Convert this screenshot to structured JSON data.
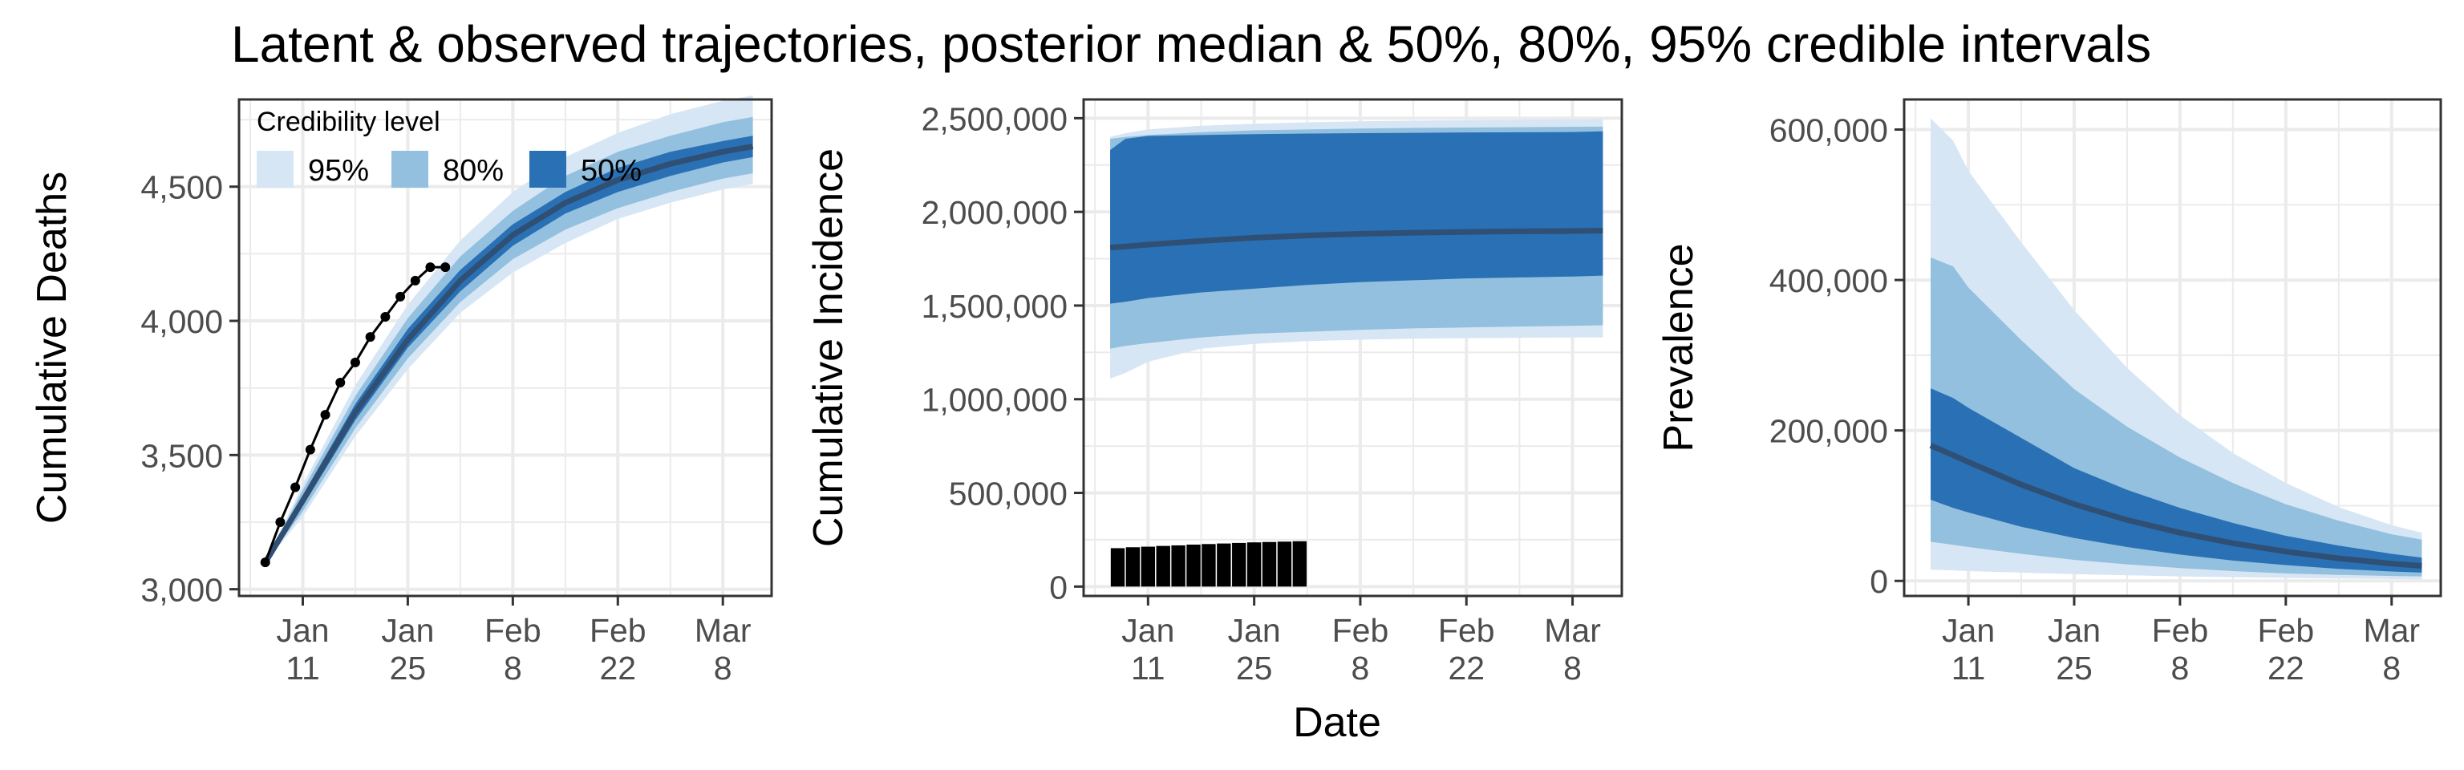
{
  "title": "Latent & observed trajectories, posterior median & 50%, 80%, 95% credible intervals",
  "colors": {
    "band95": "#D6E6F4",
    "band80": "#93C0DE",
    "band50": "#2A70B4",
    "median": "#2F4F74",
    "observed": "#000000",
    "grid": "#EBEBEB",
    "axis": "#333333"
  },
  "legend": {
    "title": "Credibility level",
    "items": [
      "95%",
      "80%",
      "50%"
    ],
    "placement": "top-left inside first panel"
  },
  "shared_x": {
    "label": "Date",
    "ticks": [
      {
        "day": 0,
        "line1": "Jan",
        "line2": "11"
      },
      {
        "day": 14,
        "line1": "Jan",
        "line2": "25"
      },
      {
        "day": 28,
        "line1": "Feb",
        "line2": "8"
      },
      {
        "day": 42,
        "line1": "Feb",
        "line2": "22"
      },
      {
        "day": 56,
        "line1": "Mar",
        "line2": "8"
      }
    ],
    "range_days": [
      -8.5,
      62.5
    ]
  },
  "chart_data": [
    {
      "type": "area",
      "ylabel": "Cumulative Deaths",
      "xlabel": "",
      "ylim": [
        2975,
        4825
      ],
      "yticks": [
        {
          "v": 3000,
          "label": "3,000"
        },
        {
          "v": 3500,
          "label": "3,500"
        },
        {
          "v": 4000,
          "label": "4,000"
        },
        {
          "v": 4500,
          "label": "4,500"
        }
      ],
      "x": [
        -5,
        0,
        7,
        14,
        21,
        28,
        35,
        42,
        49,
        56,
        60
      ],
      "median": [
        3100,
        3330,
        3660,
        3930,
        4150,
        4320,
        4440,
        4525,
        4585,
        4630,
        4650
      ],
      "q50": {
        "lo": [
          3100,
          3310,
          3630,
          3900,
          4110,
          4280,
          4400,
          4480,
          4540,
          4590,
          4610
        ],
        "hi": [
          3100,
          3350,
          3690,
          3970,
          4190,
          4360,
          4480,
          4570,
          4630,
          4670,
          4690
        ]
      },
      "q80": {
        "lo": [
          3100,
          3290,
          3600,
          3860,
          4070,
          4230,
          4340,
          4420,
          4480,
          4530,
          4550
        ],
        "hi": [
          3100,
          3370,
          3720,
          4010,
          4240,
          4410,
          4540,
          4630,
          4690,
          4740,
          4760
        ]
      },
      "q95": {
        "lo": [
          3100,
          3270,
          3570,
          3820,
          4030,
          4180,
          4290,
          4380,
          4440,
          4490,
          4510
        ],
        "hi": [
          3100,
          3390,
          3760,
          4060,
          4300,
          4480,
          4610,
          4700,
          4770,
          4820,
          4840
        ]
      },
      "observed": {
        "type": "line",
        "x": [
          -5,
          -3,
          -1,
          1,
          3,
          5,
          7,
          9,
          11,
          13,
          15,
          17,
          19
        ],
        "y": [
          3100,
          3250,
          3380,
          3520,
          3650,
          3770,
          3845,
          3940,
          4015,
          4090,
          4150,
          4200,
          4200
        ]
      }
    },
    {
      "type": "area",
      "ylabel": "Cumulative Incidence",
      "xlabel": "Date",
      "ylim": [
        -50000,
        2600000
      ],
      "yticks": [
        {
          "v": 0,
          "label": "0"
        },
        {
          "v": 500000,
          "label": "500,000"
        },
        {
          "v": 1000000,
          "label": "1,000,000"
        },
        {
          "v": 1500000,
          "label": "1,500,000"
        },
        {
          "v": 2000000,
          "label": "2,000,000"
        },
        {
          "v": 2500000,
          "label": "2,500,000"
        }
      ],
      "x": [
        -5,
        -3,
        0,
        7,
        14,
        21,
        28,
        35,
        42,
        49,
        56,
        60
      ],
      "median": [
        1810000,
        1815000,
        1825000,
        1845000,
        1862000,
        1874000,
        1883000,
        1889000,
        1893000,
        1896000,
        1898000,
        1900000
      ],
      "q50": {
        "lo": [
          1510000,
          1520000,
          1540000,
          1570000,
          1590000,
          1610000,
          1625000,
          1635000,
          1645000,
          1650000,
          1655000,
          1660000
        ],
        "hi": [
          2330000,
          2390000,
          2405000,
          2410000,
          2415000,
          2418000,
          2420000,
          2422000,
          2424000,
          2425000,
          2426000,
          2430000
        ]
      },
      "q80": {
        "lo": [
          1270000,
          1285000,
          1300000,
          1330000,
          1350000,
          1360000,
          1370000,
          1378000,
          1383000,
          1388000,
          1392000,
          1395000
        ],
        "hi": [
          2390000,
          2400000,
          2410000,
          2425000,
          2435000,
          2440000,
          2445000,
          2448000,
          2450000,
          2452000,
          2454000,
          2455000
        ]
      },
      "q95": {
        "lo": [
          1110000,
          1140000,
          1200000,
          1270000,
          1295000,
          1310000,
          1318000,
          1323000,
          1326000,
          1328000,
          1330000,
          1330000
        ],
        "hi": [
          2400000,
          2420000,
          2440000,
          2460000,
          2470000,
          2478000,
          2483000,
          2487000,
          2490000,
          2492000,
          2494000,
          2495000
        ]
      },
      "observed": {
        "type": "bar",
        "x": [
          -4,
          -2,
          0,
          2,
          4,
          6,
          8,
          10,
          12,
          14,
          16,
          18,
          20
        ],
        "y": [
          205000,
          210000,
          213000,
          217000,
          220000,
          224000,
          227000,
          230000,
          233000,
          236000,
          238000,
          240000,
          242000
        ]
      }
    },
    {
      "type": "area",
      "ylabel": "Prevalence",
      "xlabel": "",
      "ylim": [
        -20000,
        640000
      ],
      "yticks": [
        {
          "v": 0,
          "label": "0"
        },
        {
          "v": 200000,
          "label": "200,000"
        },
        {
          "v": 400000,
          "label": "400,000"
        },
        {
          "v": 600000,
          "label": "600,000"
        }
      ],
      "x": [
        -5,
        -2,
        0,
        7,
        14,
        21,
        28,
        35,
        42,
        49,
        56,
        60
      ],
      "median": [
        180000,
        167000,
        158000,
        128000,
        102000,
        81000,
        64000,
        50000,
        39000,
        30000,
        23000,
        20000
      ],
      "q50": {
        "lo": [
          108000,
          97000,
          91000,
          72000,
          57000,
          45000,
          35000,
          27000,
          21000,
          16000,
          12500,
          11000
        ],
        "hi": [
          256000,
          243000,
          230000,
          190000,
          150000,
          121000,
          97000,
          77000,
          60000,
          47000,
          36000,
          31000
        ]
      },
      "q80": {
        "lo": [
          52000,
          48000,
          45000,
          36000,
          28000,
          22000,
          17000,
          13000,
          10000,
          8000,
          6500,
          6000
        ],
        "hi": [
          430000,
          418000,
          390000,
          320000,
          255000,
          205000,
          164000,
          130000,
          102000,
          80000,
          62000,
          55000
        ]
      },
      "q95": {
        "lo": [
          15000,
          14000,
          13000,
          11000,
          9000,
          7500,
          6000,
          5000,
          4000,
          3200,
          2500,
          2000
        ],
        "hi": [
          615000,
          585000,
          545000,
          450000,
          360000,
          283000,
          220000,
          170000,
          130000,
          98000,
          74000,
          64000
        ]
      },
      "observed": null
    }
  ]
}
